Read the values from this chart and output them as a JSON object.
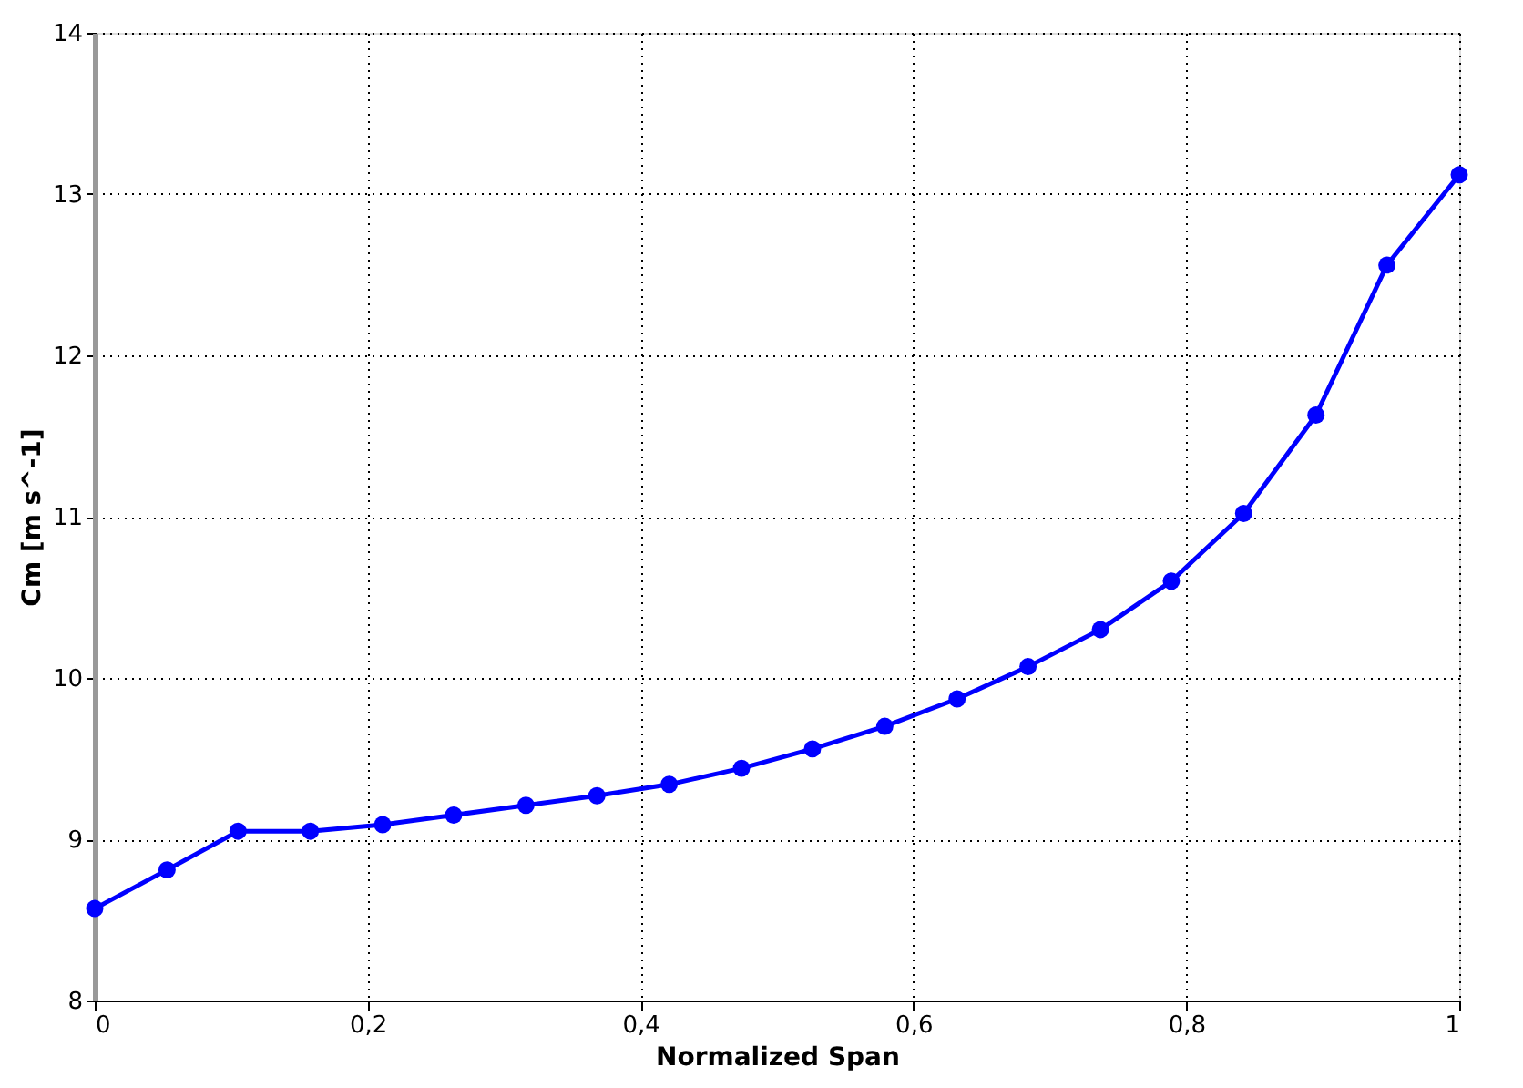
{
  "chart_data": {
    "type": "line",
    "xlabel": "Normalized Span",
    "ylabel": "Cm [m s^-1]",
    "x": [
      0,
      0.053,
      0.105,
      0.158,
      0.211,
      0.263,
      0.316,
      0.368,
      0.421,
      0.474,
      0.526,
      0.579,
      0.632,
      0.684,
      0.737,
      0.789,
      0.842,
      0.895,
      0.947,
      1
    ],
    "series": [
      {
        "color": "#0000ff",
        "values": [
          8.57,
          8.81,
          9.05,
          9.05,
          9.09,
          9.15,
          9.21,
          9.27,
          9.34,
          9.44,
          9.56,
          9.7,
          9.87,
          10.07,
          10.3,
          10.6,
          11.02,
          11.63,
          12.56,
          13.12
        ]
      }
    ],
    "xlim": [
      0,
      1
    ],
    "ylim": [
      8,
      14
    ],
    "xticks": [
      0,
      {
        "value": 0.2,
        "label": "0,2"
      },
      {
        "value": 0.4,
        "label": "0,4"
      },
      {
        "value": 0.6,
        "label": "0,6"
      },
      {
        "value": 0.8,
        "label": "0,8"
      },
      1
    ],
    "yticks": [
      8,
      9,
      10,
      11,
      12,
      13,
      14
    ],
    "grid": true,
    "marker": "circle",
    "line_style": "solid"
  }
}
